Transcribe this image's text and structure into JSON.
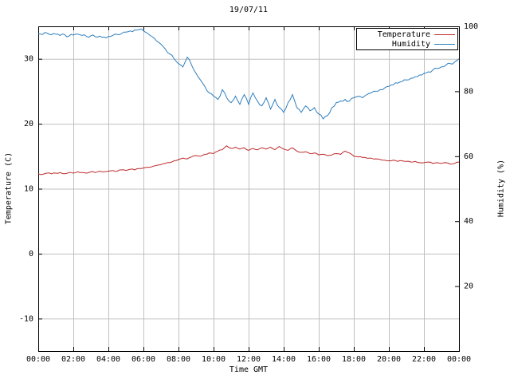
{
  "title": "19/07/11",
  "axes": {
    "x_label": "Time GMT",
    "y_left_label": "Temperature (C)",
    "y_right_label": "Humidity (%)",
    "x_range": [
      0,
      24
    ],
    "x_tick_hours": [
      0,
      2,
      4,
      6,
      8,
      10,
      12,
      14,
      16,
      18,
      20,
      22,
      24
    ],
    "x_ticks": [
      "00:00",
      "02:00",
      "04:00",
      "06:00",
      "08:00",
      "10:00",
      "12:00",
      "14:00",
      "16:00",
      "18:00",
      "20:00",
      "22:00",
      "00:00"
    ],
    "y_left_ticks": [
      -10,
      0,
      10,
      20,
      30
    ],
    "y_left_range": [
      -15,
      35
    ],
    "y_right_ticks": [
      20,
      40,
      60,
      80,
      100
    ],
    "y_right_range": [
      0,
      100
    ]
  },
  "legend": [
    {
      "label": "Temperature",
      "color": "#bf2b2b"
    },
    {
      "label": "Humidity",
      "color": "#2e7fbe"
    }
  ],
  "style": {
    "grid_color": "#c0c0c0",
    "axis_color": "#000000",
    "background": "#ffffff"
  },
  "chart_data": {
    "type": "line",
    "title": "19/07/11",
    "xlabel": "Time GMT",
    "x_unit": "hours",
    "x_range": [
      0,
      24
    ],
    "x_start": 0,
    "grid": true,
    "legend_position": "top-right",
    "jitter": {
      "Temperature": 0.08,
      "Humidity": 0.45
    },
    "series": [
      {
        "name": "Temperature",
        "axis": "left",
        "ylabel": "Temperature (C)",
        "ylim": [
          -15,
          35
        ],
        "color": "#bf2b2b",
        "x_step_hours": 0.25,
        "values": [
          12.3,
          12.2,
          12.4,
          12.3,
          12.4,
          12.5,
          12.3,
          12.5,
          12.4,
          12.6,
          12.5,
          12.4,
          12.6,
          12.5,
          12.7,
          12.6,
          12.7,
          12.8,
          12.7,
          12.9,
          12.8,
          13.0,
          12.9,
          13.1,
          13.2,
          13.3,
          13.4,
          13.6,
          13.7,
          13.9,
          14.0,
          14.3,
          14.5,
          14.7,
          14.6,
          14.9,
          15.1,
          15.0,
          15.3,
          15.5,
          15.4,
          15.8,
          16.0,
          16.6,
          16.2,
          16.4,
          16.1,
          16.3,
          15.9,
          16.2,
          16.0,
          16.3,
          16.1,
          16.4,
          16.0,
          16.5,
          16.1,
          15.9,
          16.3,
          15.8,
          15.6,
          15.7,
          15.4,
          15.5,
          15.2,
          15.3,
          15.1,
          15.2,
          15.4,
          15.3,
          15.8,
          15.5,
          15.0,
          14.9,
          14.8,
          14.7,
          14.7,
          14.6,
          14.5,
          14.4,
          14.3,
          14.4,
          14.2,
          14.3,
          14.2,
          14.1,
          14.2,
          14.0,
          14.0,
          14.1,
          13.9,
          14.0,
          13.9,
          14.0,
          13.8,
          13.9,
          14.1
        ]
      },
      {
        "name": "Humidity",
        "axis": "right",
        "ylabel": "Humidity (%)",
        "ylim": [
          0,
          100
        ],
        "color": "#2e7fbe",
        "x_step_hours": 0.25,
        "values": [
          97.8,
          97.5,
          97.9,
          97.4,
          97.6,
          97.2,
          97.5,
          97.0,
          97.3,
          97.6,
          97.2,
          96.9,
          97.1,
          96.8,
          97.0,
          96.7,
          96.9,
          97.2,
          97.5,
          97.8,
          98.2,
          98.6,
          98.9,
          99.0,
          98.6,
          97.8,
          96.8,
          95.5,
          94.5,
          93.0,
          91.5,
          90.0,
          88.5,
          87.5,
          90.5,
          88.0,
          85.5,
          83.5,
          81.5,
          79.5,
          78.5,
          77.5,
          80.5,
          78.0,
          76.5,
          78.5,
          76.0,
          79.0,
          76.0,
          79.5,
          77.0,
          75.5,
          78.0,
          74.5,
          77.5,
          75.0,
          73.5,
          76.5,
          79.0,
          75.0,
          73.5,
          75.5,
          74.0,
          75.0,
          73.0,
          71.5,
          72.5,
          75.0,
          76.5,
          77.0,
          77.5,
          77.0,
          78.0,
          78.5,
          78.0,
          79.0,
          79.5,
          80.0,
          80.5,
          81.0,
          81.5,
          82.0,
          82.5,
          83.0,
          83.5,
          84.0,
          84.5,
          85.0,
          85.5,
          86.0,
          86.5,
          87.0,
          87.5,
          88.0,
          88.5,
          89.0,
          90.0
        ]
      }
    ]
  }
}
